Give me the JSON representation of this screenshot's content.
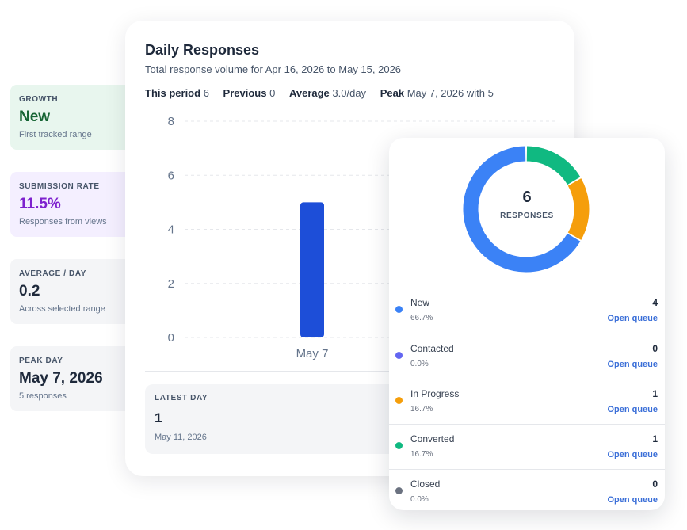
{
  "stats": [
    {
      "label": "GROWTH",
      "value": "New",
      "sub": "First tracked range"
    },
    {
      "label": "SUBMISSION RATE",
      "value": "11.5%",
      "sub": "Responses from views"
    },
    {
      "label": "AVERAGE / DAY",
      "value": "0.2",
      "sub": "Across selected range"
    },
    {
      "label": "PEAK DAY",
      "value": "May 7, 2026",
      "sub": "5 responses"
    }
  ],
  "daily": {
    "title": "Daily Responses",
    "subtitle": "Total response volume for Apr 16, 2026 to May 15, 2026",
    "metrics": [
      {
        "label": "This period",
        "value": "6"
      },
      {
        "label": "Previous",
        "value": "0"
      },
      {
        "label": "Average",
        "value": "3.0/day"
      },
      {
        "label": "Peak",
        "value": "May 7, 2026 with 5"
      }
    ],
    "latest": {
      "label": "LATEST DAY",
      "value": "1",
      "sub": "May 11, 2026"
    }
  },
  "chart_data": {
    "type": "bar",
    "categories": [
      "May 7"
    ],
    "values": [
      5
    ],
    "ylim": [
      0,
      8
    ],
    "yticks": [
      0,
      2,
      4,
      6,
      8
    ],
    "grid": true,
    "bar_color": "#1d4ed8"
  },
  "donut": {
    "total": "6",
    "label": "RESPONSES",
    "segments": [
      {
        "name": "New",
        "value": 4,
        "color": "#3b82f6"
      },
      {
        "name": "In Progress",
        "value": 1,
        "color": "#f59e0b"
      },
      {
        "name": "Converted",
        "value": 1,
        "color": "#10b981"
      }
    ]
  },
  "statuses": [
    {
      "name": "New",
      "pct": "66.7%",
      "count": "4",
      "link": "Open queue",
      "color": "#3b82f6"
    },
    {
      "name": "Contacted",
      "pct": "0.0%",
      "count": "0",
      "link": "Open queue",
      "color": "#6366f1"
    },
    {
      "name": "In Progress",
      "pct": "16.7%",
      "count": "1",
      "link": "Open queue",
      "color": "#f59e0b"
    },
    {
      "name": "Converted",
      "pct": "16.7%",
      "count": "1",
      "link": "Open queue",
      "color": "#10b981"
    },
    {
      "name": "Closed",
      "pct": "0.0%",
      "count": "0",
      "link": "Open queue",
      "color": "#6b7280"
    }
  ]
}
